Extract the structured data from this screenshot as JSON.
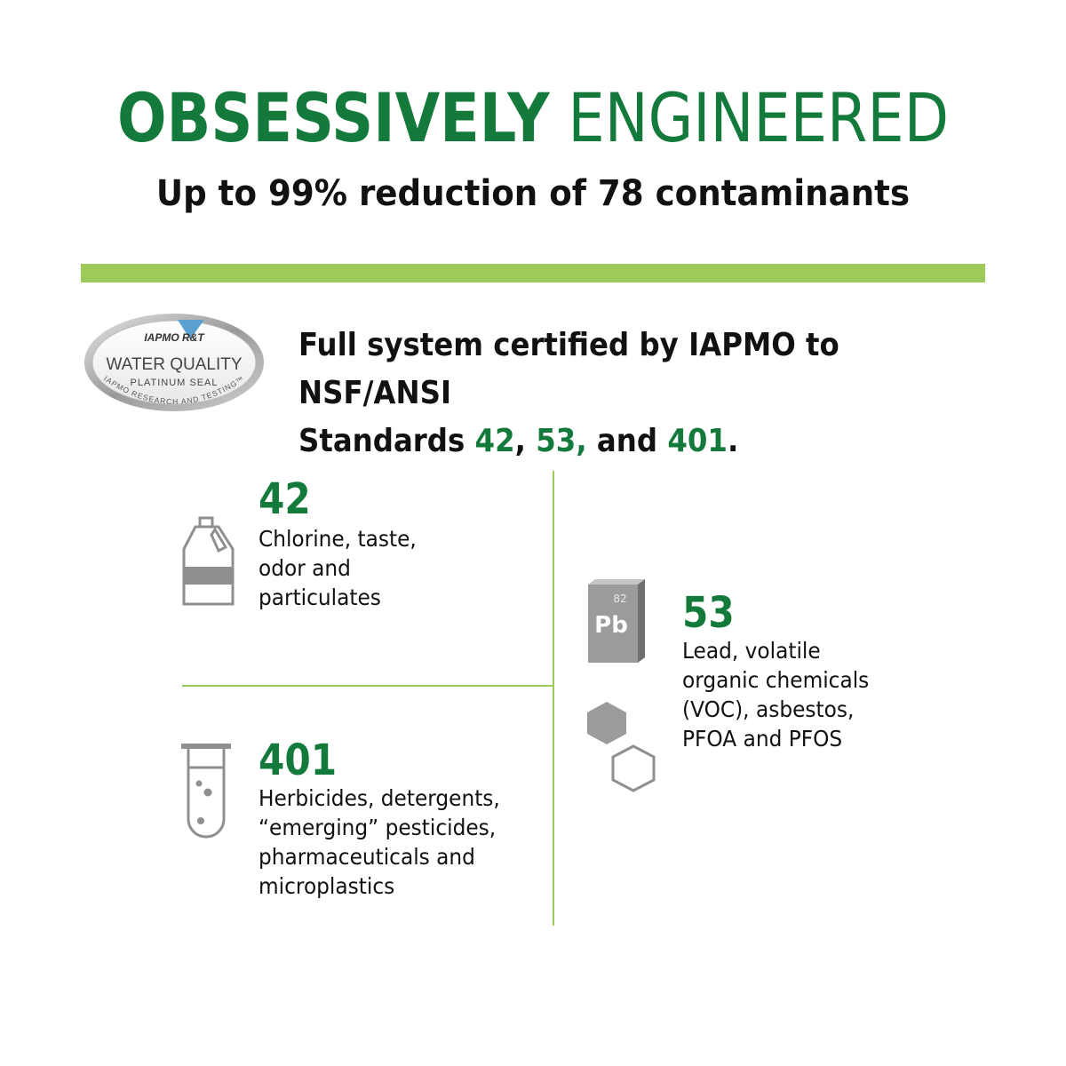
{
  "header": {
    "title_bold": "OBSESSIVELY",
    "title_light": "ENGINEERED",
    "subtitle": "Up to 99% reduction of 78 contaminants"
  },
  "seal": {
    "top_text": "IAPMO R&T",
    "main_text": "WATER QUALITY",
    "sub_text": "PLATINUM SEAL",
    "arc_text": "IAPMO RESEARCH AND TESTING™"
  },
  "certification": {
    "line1": "Full system certified by IAPMO to NSF/ANSI",
    "line2_prefix": "Standards ",
    "std1": "42",
    "sep1": ", ",
    "std2": "53,",
    "sep2": " and ",
    "std3": "401",
    "suffix": "."
  },
  "standards": [
    {
      "number": "42",
      "icon": "bleach-jug-icon",
      "lines": [
        "Chlorine, taste,",
        "odor and",
        "particulates"
      ]
    },
    {
      "number": "53",
      "icon": "lead-element-icon",
      "element_number": "82",
      "element_symbol": "Pb",
      "lines": [
        "Lead, volatile",
        "organic chemicals",
        "(VOC), asbestos,",
        "PFOA and PFOS"
      ]
    },
    {
      "number": "401",
      "icon": "test-tube-icon",
      "lines": [
        "Herbicides, detergents,",
        "“emerging” pesticides,",
        "pharmaceuticals and",
        "microplastics"
      ]
    }
  ],
  "colors": {
    "green": "#147a3c",
    "light_green": "#9ccb5a",
    "icon_gray": "#8f8f8f",
    "text": "#111111"
  }
}
